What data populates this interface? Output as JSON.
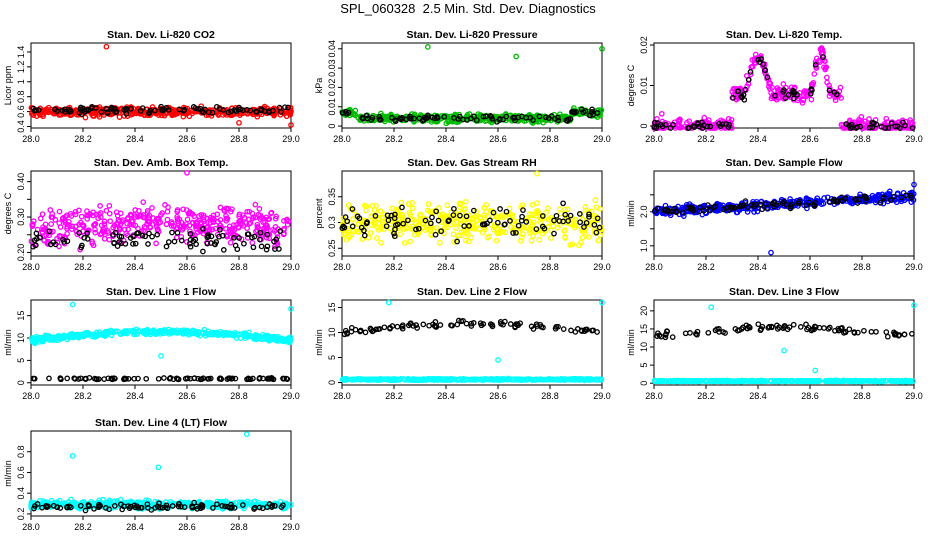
{
  "title": "SPL_060328  2.5 Min. Std. Dev. Diagnostics",
  "chart_data": [
    {
      "type": "scatter",
      "title": "Stan. Dev. Li-820 CO2",
      "ylabel": "Licor ppm",
      "color": "#ff0000",
      "xlim": [
        28.0,
        29.0
      ],
      "ylim": [
        0.38,
        1.52
      ],
      "yticks": [
        0.4,
        0.6,
        0.8,
        1.0,
        1.2,
        1.4
      ],
      "xticks": [
        28.0,
        28.2,
        28.4,
        28.6,
        28.8,
        29.0
      ],
      "series": [
        {
          "name": "color",
          "base": "flat",
          "level": 0.6,
          "spread": 0.05
        },
        {
          "name": "black",
          "base": "flat",
          "level": 0.62,
          "spread": 0.04
        }
      ],
      "outliers": [
        [
          28.29,
          1.47
        ],
        [
          28.8,
          0.45
        ],
        [
          29.0,
          0.42
        ]
      ]
    },
    {
      "type": "scatter",
      "title": "Stan. Dev. Li-820 Pressure",
      "ylabel": "kPa",
      "color": "#00bb00",
      "xlim": [
        28.0,
        29.0
      ],
      "ylim": [
        -0.001,
        0.043
      ],
      "yticks": [
        0.0,
        0.01,
        0.02,
        0.03,
        0.04
      ],
      "xticks": [
        28.0,
        28.2,
        28.4,
        28.6,
        28.8,
        29.0
      ],
      "series": [
        {
          "name": "color",
          "base": "dip",
          "level": 0.004,
          "spread": 0.0015
        },
        {
          "name": "black",
          "base": "dip",
          "level": 0.004,
          "spread": 0.0012
        }
      ],
      "outliers": [
        [
          28.33,
          0.041
        ],
        [
          28.67,
          0.036
        ],
        [
          29.0,
          0.04
        ]
      ]
    },
    {
      "type": "scatter",
      "title": "Stan. Dev. Li-820 Temp.",
      "ylabel": "degrees C",
      "color": "#ff00ff",
      "xlim": [
        28.0,
        29.0
      ],
      "ylim": [
        -0.0005,
        0.0205
      ],
      "yticks": [
        0.0,
        0.01,
        0.02
      ],
      "xticks": [
        28.0,
        28.2,
        28.4,
        28.6,
        28.8,
        29.0
      ],
      "series": [
        {
          "name": "color",
          "base": "bump",
          "level": 0.0,
          "spread": 0.0015
        },
        {
          "name": "black",
          "base": "bump",
          "level": 0.0,
          "spread": 0.001
        }
      ],
      "outliers": [
        [
          28.03,
          0.003
        ]
      ]
    },
    {
      "type": "scatter",
      "title": "Stan. Dev. Amb. Box Temp.",
      "ylabel": "degrees C",
      "color": "#ff00ff",
      "xlim": [
        28.0,
        29.0
      ],
      "ylim": [
        0.19,
        0.43
      ],
      "yticks": [
        0.2,
        0.25,
        0.3,
        0.35,
        0.4
      ],
      "ytickLabels": [
        "0.20",
        "",
        "0.30",
        "",
        "0.40"
      ],
      "xticks": [
        28.0,
        28.2,
        28.4,
        28.6,
        28.8,
        29.0
      ],
      "series": [
        {
          "name": "color",
          "base": "hump",
          "level": 0.26,
          "spread": 0.04
        },
        {
          "name": "black",
          "base": "flat",
          "level": 0.235,
          "spread": 0.025
        }
      ],
      "outliers": [
        [
          28.6,
          0.425
        ]
      ]
    },
    {
      "type": "scatter",
      "title": "Stan. Dev. Gas Stream RH",
      "ylabel": "percent",
      "color": "#ffff00",
      "xlim": [
        28.0,
        29.0
      ],
      "ylim": [
        0.235,
        0.4
      ],
      "yticks": [
        0.25,
        0.3,
        0.35
      ],
      "xticks": [
        28.0,
        28.2,
        28.4,
        28.6,
        28.8,
        29.0
      ],
      "series": [
        {
          "name": "color",
          "base": "flat",
          "level": 0.3,
          "spread": 0.03
        },
        {
          "name": "black",
          "base": "flat",
          "level": 0.3,
          "spread": 0.025
        }
      ],
      "outliers": [
        [
          28.75,
          0.395
        ]
      ]
    },
    {
      "type": "scatter",
      "title": "Stan. Dev. Sample Flow",
      "ylabel": "ml/min",
      "color": "#0000ff",
      "xlim": [
        28.0,
        29.0
      ],
      "ylim": [
        0.7,
        3.2
      ],
      "yticks": [
        1.0,
        1.5,
        2.0,
        2.5
      ],
      "ytickLabels": [
        "1.0",
        "",
        "2.0",
        ""
      ],
      "xticks": [
        28.0,
        28.2,
        28.4,
        28.6,
        28.8,
        29.0
      ],
      "series": [
        {
          "name": "color",
          "base": "rise",
          "level": 2.0,
          "spread": 0.12
        },
        {
          "name": "black",
          "base": "rise",
          "level": 2.0,
          "spread": 0.1
        }
      ],
      "outliers": [
        [
          28.45,
          0.8
        ],
        [
          29.0,
          2.8
        ]
      ]
    },
    {
      "type": "scatter",
      "title": "Stan. Dev. Line 1 Flow",
      "ylabel": "ml/min",
      "color": "#00ffff",
      "xlim": [
        28.0,
        29.0
      ],
      "ylim": [
        -0.5,
        18.5
      ],
      "yticks": [
        0,
        5,
        10,
        15
      ],
      "xticks": [
        28.0,
        28.2,
        28.4,
        28.6,
        28.8,
        29.0
      ],
      "series": [
        {
          "name": "color",
          "base": "hump",
          "level": 9.5,
          "spread": 0.5
        },
        {
          "name": "black",
          "base": "flat",
          "level": 0.9,
          "spread": 0.15
        }
      ],
      "outliers": [
        [
          28.16,
          17.5
        ],
        [
          28.5,
          6.0
        ],
        [
          29.0,
          16.5
        ]
      ]
    },
    {
      "type": "scatter",
      "title": "Stan. Dev. Line 2 Flow",
      "ylabel": "ml/min",
      "color": "#00ffff",
      "xlim": [
        28.0,
        29.0
      ],
      "ylim": [
        -0.5,
        16.5
      ],
      "yticks": [
        0,
        5,
        10,
        15
      ],
      "xticks": [
        28.0,
        28.2,
        28.4,
        28.6,
        28.8,
        29.0
      ],
      "series": [
        {
          "name": "color",
          "base": "flat",
          "level": 0.6,
          "spread": 0.12
        },
        {
          "name": "black",
          "base": "hump",
          "level": 10.0,
          "spread": 0.5
        }
      ],
      "outliers": [
        [
          28.18,
          16.0
        ],
        [
          28.6,
          4.5
        ],
        [
          29.0,
          16.0
        ]
      ]
    },
    {
      "type": "scatter",
      "title": "Stan. Dev. Line 3 Flow",
      "ylabel": "ml/min",
      "color": "#00ffff",
      "xlim": [
        28.0,
        29.0
      ],
      "ylim": [
        -0.5,
        23.0
      ],
      "yticks": [
        0,
        5,
        10,
        15,
        20
      ],
      "xticks": [
        28.0,
        28.2,
        28.4,
        28.6,
        28.8,
        29.0
      ],
      "series": [
        {
          "name": "color",
          "base": "flat",
          "level": 0.6,
          "spread": 0.12
        },
        {
          "name": "black",
          "base": "hump",
          "level": 13.0,
          "spread": 0.7
        }
      ],
      "outliers": [
        [
          28.22,
          21.0
        ],
        [
          28.5,
          9.0
        ],
        [
          28.62,
          3.5
        ],
        [
          29.0,
          21.5
        ]
      ]
    },
    {
      "type": "scatter",
      "title": "Stan. Dev. Line 4 (LT) Flow",
      "ylabel": "ml/min",
      "color": "#00ffff",
      "xlim": [
        28.0,
        29.0
      ],
      "ylim": [
        0.18,
        1.0
      ],
      "yticks": [
        0.2,
        0.4,
        0.6,
        0.8
      ],
      "xticks": [
        28.0,
        28.2,
        28.4,
        28.6,
        28.8,
        29.0
      ],
      "series": [
        {
          "name": "color",
          "base": "flat",
          "level": 0.29,
          "spread": 0.03
        },
        {
          "name": "black",
          "base": "flat",
          "level": 0.27,
          "spread": 0.025
        }
      ],
      "outliers": [
        [
          28.16,
          0.76
        ],
        [
          28.49,
          0.65
        ],
        [
          28.83,
          0.97
        ]
      ]
    }
  ]
}
